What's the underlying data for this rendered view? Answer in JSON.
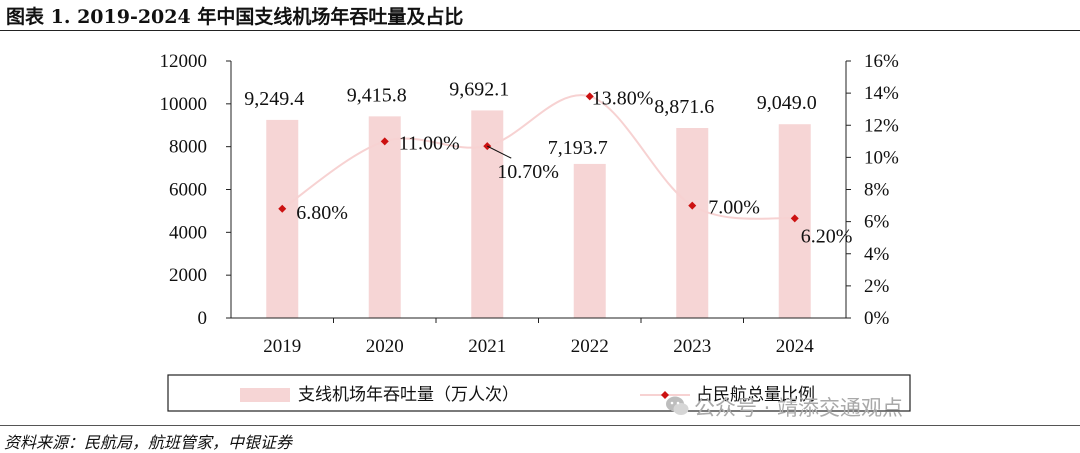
{
  "figure": {
    "title": "图表 1. 2019-2024 年中国支线机场年吞吐量及占比",
    "source": "资料来源：民航局，航班管家，中银证券",
    "watermark": "公众号 · 靖添交通观点"
  },
  "chart_data": {
    "type": "bar",
    "categories": [
      "2019",
      "2020",
      "2021",
      "2022",
      "2023",
      "2024"
    ],
    "series": [
      {
        "name": "支线机场年吞吐量（万人次）",
        "type": "bar",
        "axis": "left",
        "color": "#f6d5d5",
        "values": [
          9249.4,
          9415.8,
          9692.1,
          7193.7,
          8871.6,
          9049.0
        ],
        "labels": [
          "9,249.4",
          "9,415.8",
          "9,692.1",
          "7,193.7",
          "8,871.6",
          "9,049.0"
        ]
      },
      {
        "name": "占民航总量比例",
        "type": "line",
        "axis": "right",
        "color": "#f7d2d2",
        "marker_color": "#cc1111",
        "smooth": true,
        "values": [
          6.8,
          11.0,
          10.7,
          13.8,
          7.0,
          6.2
        ],
        "labels": [
          "6.80%",
          "11.00%",
          "10.70%",
          "13.80%",
          "7.00%",
          "6.20%"
        ]
      }
    ],
    "ylim_left": [
      0,
      12000
    ],
    "yticks_left": [
      "0",
      "2000",
      "4000",
      "6000",
      "8000",
      "10000",
      "12000"
    ],
    "ylim_right": [
      0,
      16
    ],
    "yticks_right": [
      "0%",
      "2%",
      "4%",
      "6%",
      "8%",
      "10%",
      "12%",
      "14%",
      "16%"
    ],
    "grid": false,
    "legend": "bottom"
  }
}
